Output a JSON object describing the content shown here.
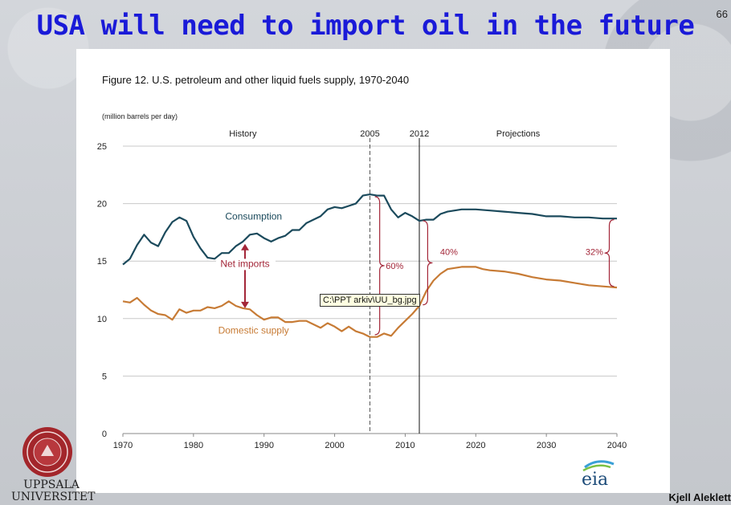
{
  "slide": {
    "title": "USA will need to import oil in the future",
    "page_number": "66",
    "author": "Kjell Aleklett",
    "university": "UPPSALA UNIVERSITET"
  },
  "tooltip": "C:\\PPT arkiv\\UU_bg.jpg",
  "source_logo": "eia",
  "chart_data": {
    "type": "line",
    "title": "Figure 12. U.S. petroleum and other liquid fuels supply, 1970-2040",
    "units": "(million barrels per day)",
    "xlim": [
      1970,
      2040
    ],
    "ylim": [
      0,
      25
    ],
    "x_ticks": [
      1970,
      1980,
      1990,
      2000,
      2010,
      2020,
      2030,
      2040
    ],
    "y_ticks": [
      0,
      5,
      10,
      15,
      20,
      25
    ],
    "grid": "horizontal",
    "section_labels": {
      "history": "History",
      "projections": "Projections"
    },
    "reference_lines": [
      {
        "x": 2005,
        "label": "2005",
        "style": "dashed"
      },
      {
        "x": 2012,
        "label": "2012",
        "style": "solid"
      }
    ],
    "annotations": {
      "net_imports": "Net imports",
      "pct_2005": "60%",
      "pct_2012": "40%",
      "pct_2040": "32%"
    },
    "series": [
      {
        "name": "Consumption",
        "color": "#1b4a5c",
        "points": [
          [
            1970,
            14.7
          ],
          [
            1971,
            15.2
          ],
          [
            1972,
            16.4
          ],
          [
            1973,
            17.3
          ],
          [
            1974,
            16.6
          ],
          [
            1975,
            16.3
          ],
          [
            1976,
            17.5
          ],
          [
            1977,
            18.4
          ],
          [
            1978,
            18.8
          ],
          [
            1979,
            18.5
          ],
          [
            1980,
            17.1
          ],
          [
            1981,
            16.1
          ],
          [
            1982,
            15.3
          ],
          [
            1983,
            15.2
          ],
          [
            1984,
            15.7
          ],
          [
            1985,
            15.7
          ],
          [
            1986,
            16.3
          ],
          [
            1987,
            16.7
          ],
          [
            1988,
            17.3
          ],
          [
            1989,
            17.4
          ],
          [
            1990,
            17.0
          ],
          [
            1991,
            16.7
          ],
          [
            1992,
            17.0
          ],
          [
            1993,
            17.2
          ],
          [
            1994,
            17.7
          ],
          [
            1995,
            17.7
          ],
          [
            1996,
            18.3
          ],
          [
            1997,
            18.6
          ],
          [
            1998,
            18.9
          ],
          [
            1999,
            19.5
          ],
          [
            2000,
            19.7
          ],
          [
            2001,
            19.6
          ],
          [
            2002,
            19.8
          ],
          [
            2003,
            20.0
          ],
          [
            2004,
            20.7
          ],
          [
            2005,
            20.8
          ],
          [
            2006,
            20.7
          ],
          [
            2007,
            20.7
          ],
          [
            2008,
            19.5
          ],
          [
            2009,
            18.8
          ],
          [
            2010,
            19.2
          ],
          [
            2011,
            18.9
          ],
          [
            2012,
            18.5
          ],
          [
            2013,
            18.6
          ],
          [
            2014,
            18.6
          ],
          [
            2015,
            19.1
          ],
          [
            2016,
            19.3
          ],
          [
            2017,
            19.4
          ],
          [
            2018,
            19.5
          ],
          [
            2019,
            19.5
          ],
          [
            2020,
            19.5
          ],
          [
            2022,
            19.4
          ],
          [
            2024,
            19.3
          ],
          [
            2026,
            19.2
          ],
          [
            2028,
            19.1
          ],
          [
            2030,
            18.9
          ],
          [
            2032,
            18.9
          ],
          [
            2034,
            18.8
          ],
          [
            2036,
            18.8
          ],
          [
            2038,
            18.7
          ],
          [
            2040,
            18.7
          ]
        ]
      },
      {
        "name": "Domestic supply",
        "color": "#c77b35",
        "points": [
          [
            1970,
            11.5
          ],
          [
            1971,
            11.4
          ],
          [
            1972,
            11.8
          ],
          [
            1973,
            11.2
          ],
          [
            1974,
            10.7
          ],
          [
            1975,
            10.4
          ],
          [
            1976,
            10.3
          ],
          [
            1977,
            9.9
          ],
          [
            1978,
            10.8
          ],
          [
            1979,
            10.5
          ],
          [
            1980,
            10.7
          ],
          [
            1981,
            10.7
          ],
          [
            1982,
            11.0
          ],
          [
            1983,
            10.9
          ],
          [
            1984,
            11.1
          ],
          [
            1985,
            11.5
          ],
          [
            1986,
            11.1
          ],
          [
            1987,
            10.9
          ],
          [
            1988,
            10.8
          ],
          [
            1989,
            10.3
          ],
          [
            1990,
            9.9
          ],
          [
            1991,
            10.1
          ],
          [
            1992,
            10.1
          ],
          [
            1993,
            9.7
          ],
          [
            1994,
            9.7
          ],
          [
            1995,
            9.8
          ],
          [
            1996,
            9.8
          ],
          [
            1997,
            9.5
          ],
          [
            1998,
            9.2
          ],
          [
            1999,
            9.6
          ],
          [
            2000,
            9.3
          ],
          [
            2001,
            8.9
          ],
          [
            2002,
            9.3
          ],
          [
            2003,
            8.9
          ],
          [
            2004,
            8.7
          ],
          [
            2005,
            8.4
          ],
          [
            2006,
            8.4
          ],
          [
            2007,
            8.7
          ],
          [
            2008,
            8.5
          ],
          [
            2009,
            9.2
          ],
          [
            2010,
            9.8
          ],
          [
            2011,
            10.4
          ],
          [
            2012,
            11.1
          ],
          [
            2013,
            12.4
          ],
          [
            2014,
            13.3
          ],
          [
            2015,
            13.9
          ],
          [
            2016,
            14.3
          ],
          [
            2017,
            14.4
          ],
          [
            2018,
            14.5
          ],
          [
            2019,
            14.5
          ],
          [
            2020,
            14.5
          ],
          [
            2021,
            14.3
          ],
          [
            2022,
            14.2
          ],
          [
            2024,
            14.1
          ],
          [
            2026,
            13.9
          ],
          [
            2028,
            13.6
          ],
          [
            2030,
            13.4
          ],
          [
            2032,
            13.3
          ],
          [
            2034,
            13.1
          ],
          [
            2036,
            12.9
          ],
          [
            2038,
            12.8
          ],
          [
            2040,
            12.7
          ]
        ]
      }
    ]
  }
}
